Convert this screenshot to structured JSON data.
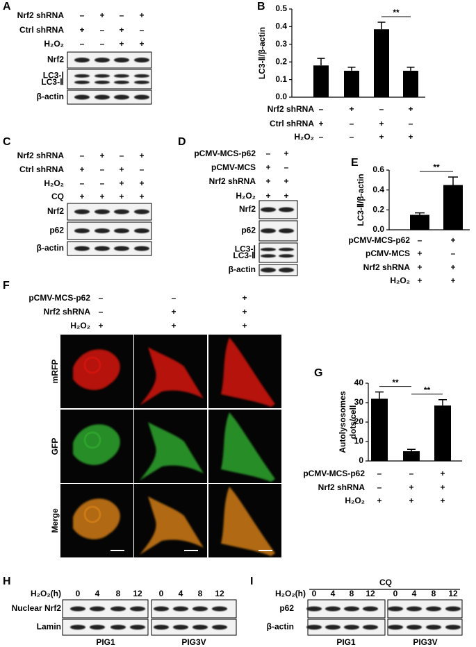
{
  "chart_data": [
    {
      "type": "bar",
      "label": "B",
      "y_label": "LC3-Ⅱ/β-actin",
      "color": "#000000",
      "values": [
        0.18,
        0.15,
        0.385,
        0.15
      ],
      "errors": [
        0.04,
        0.02,
        0.04,
        0.02
      ],
      "ylim": [
        0,
        0.5
      ],
      "yticks": [
        {
          "value": 0,
          "label": "0.0"
        },
        0.1,
        0.2,
        0.3,
        0.4,
        0.5
      ],
      "annotations": [
        {
          "text": "**",
          "bars": [
            2,
            3
          ]
        }
      ],
      "conditions": [
        {
          "name": "Nrf2 shRNA",
          "signs": [
            "–",
            "+",
            "–",
            "+"
          ]
        },
        {
          "name": "Ctrl shRNA",
          "signs": [
            "+",
            "–",
            "+",
            "–"
          ]
        },
        {
          "name": "H₂O₂",
          "signs": [
            "–",
            "–",
            "+",
            "+"
          ]
        }
      ]
    },
    {
      "type": "bar",
      "label": "E",
      "y_label": "LC3-Ⅱ/β-actin",
      "color": "#000000",
      "values": [
        0.15,
        0.45
      ],
      "errors": [
        0.02,
        0.08
      ],
      "ylim": [
        0,
        0.6
      ],
      "yticks": [
        {
          "value": 0,
          "label": "0.0"
        },
        0.2,
        0.4,
        0.6
      ],
      "annotations": [
        {
          "text": "**",
          "bars": [
            0,
            1
          ]
        }
      ],
      "conditions": [
        {
          "name": "pCMV-MCS-p62",
          "signs": [
            "–",
            "+"
          ]
        },
        {
          "name": "pCMV-MCS",
          "signs": [
            "+",
            "–"
          ]
        },
        {
          "name": "Nrf2 shRNA",
          "signs": [
            "+",
            "+"
          ]
        },
        {
          "name": "H₂O₂",
          "signs": [
            "+",
            "+"
          ]
        }
      ]
    },
    {
      "type": "bar",
      "label": "G",
      "y_label": [
        "Autolysosomes",
        "dots/cell"
      ],
      "color": "#000000",
      "values": [
        32,
        5,
        28.5
      ],
      "errors": [
        3.5,
        1,
        3
      ],
      "ylim": [
        0,
        40
      ],
      "yticks": [
        0,
        10,
        20,
        30,
        40
      ],
      "annotations": [
        {
          "text": "**",
          "bars": [
            0,
            1
          ]
        },
        {
          "text": "**",
          "bars": [
            1,
            2
          ]
        }
      ],
      "conditions": [
        {
          "name": "pCMV-MCS-p62",
          "signs": [
            "–",
            "–",
            "+"
          ]
        },
        {
          "name": "Nrf2 shRNA",
          "signs": [
            "–",
            "+",
            "+"
          ]
        },
        {
          "name": "H₂O₂",
          "signs": [
            "+",
            "+",
            "+"
          ]
        }
      ]
    }
  ],
  "blot_panels": {
    "A": {
      "label": "A",
      "rows": [
        {
          "name": "Nrf2 shRNA",
          "signs": [
            "–",
            "+",
            "–",
            "+"
          ]
        },
        {
          "name": "Ctrl shRNA",
          "signs": [
            "+",
            "–",
            "+",
            "–"
          ]
        },
        {
          "name": "H₂O₂",
          "signs": [
            "–",
            "–",
            "+",
            "+"
          ]
        }
      ],
      "blots": [
        {
          "labels": [
            "Nrf2"
          ]
        },
        {
          "labels": [
            "LC3-Ⅰ",
            "LC3-Ⅱ"
          ]
        },
        {
          "labels": [
            "β-actin"
          ]
        }
      ]
    },
    "C": {
      "label": "C",
      "rows": [
        {
          "name": "Nrf2 shRNA",
          "signs": [
            "–",
            "+",
            "–",
            "+"
          ]
        },
        {
          "name": "Ctrl shRNA",
          "signs": [
            "+",
            "–",
            "+",
            "–"
          ]
        },
        {
          "name": "H₂O₂",
          "signs": [
            "–",
            "–",
            "+",
            "+"
          ]
        },
        {
          "name": "CQ",
          "signs": [
            "+",
            "+",
            "+",
            "+"
          ]
        }
      ],
      "blots": [
        {
          "labels": [
            "Nrf2"
          ]
        },
        {
          "labels": [
            "p62"
          ]
        },
        {
          "labels": [
            "β-actin"
          ]
        }
      ]
    },
    "D": {
      "label": "D",
      "rows": [
        {
          "name": "pCMV-MCS-p62",
          "signs": [
            "–",
            "+"
          ]
        },
        {
          "name": "pCMV-MCS",
          "signs": [
            "+",
            "–"
          ]
        },
        {
          "name": "Nrf2 shRNA",
          "signs": [
            "+",
            "+"
          ]
        },
        {
          "name": "H₂O₂",
          "signs": [
            "+",
            "+"
          ]
        }
      ],
      "blots": [
        {
          "labels": [
            "Nrf2"
          ]
        },
        {
          "labels": [
            "p62"
          ]
        },
        {
          "labels": [
            "LC3-Ⅰ",
            "LC3-Ⅱ"
          ]
        },
        {
          "labels": [
            "β-actin"
          ]
        }
      ]
    },
    "H": {
      "label": "H",
      "time_label": "H₂O₂(h)",
      "times": [
        0,
        4,
        8,
        12,
        0,
        4,
        8,
        12
      ],
      "groups": [
        "PIG1",
        "PIG3V"
      ],
      "blots": [
        {
          "labels": [
            "Nuclear Nrf2"
          ]
        },
        {
          "labels": [
            "Lamin"
          ]
        }
      ]
    },
    "I": {
      "label": "I",
      "treatment": "CQ",
      "time_label": "H₂O₂(h)",
      "times": [
        0,
        4,
        8,
        12,
        0,
        4,
        8,
        12
      ],
      "groups": [
        "PIG1",
        "PIG3V"
      ],
      "blots": [
        {
          "labels": [
            "p62"
          ]
        },
        {
          "labels": [
            "β-actin"
          ]
        }
      ]
    }
  },
  "imaging_panel": {
    "label": "F",
    "rows": [
      {
        "name": "pCMV-MCS-p62",
        "signs": [
          "–",
          "–",
          "+"
        ]
      },
      {
        "name": "Nrf2 shRNA",
        "signs": [
          "–",
          "+",
          "+"
        ]
      },
      {
        "name": "H₂O₂",
        "signs": [
          "+",
          "+",
          "+"
        ]
      }
    ],
    "channels": [
      "mRFP",
      "GFP",
      "Merge"
    ]
  }
}
